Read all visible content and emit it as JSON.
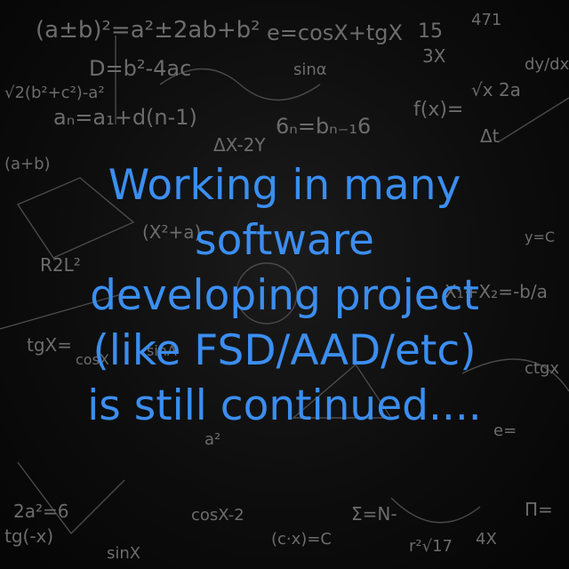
{
  "headline": {
    "lines": [
      "Working in many",
      "software",
      "developing project",
      "(like FSD/AAD/etc)",
      "is still continued...."
    ],
    "color": "#3b8ef0"
  },
  "background": {
    "color": "#0d0d0d",
    "doodle_color": "#6c6c6c",
    "formulas": [
      "(a±b)²=a²±2ab+b²",
      "e=cosX+tgX",
      "15",
      "471",
      "3X",
      "D=b²-4ac",
      "sinα",
      "√2(b²+c²)-a²",
      "aₙ=a₁+d(n-1)",
      "6ₙ=bₙ₋₁6",
      "f(x)=",
      "√x 2a",
      "Δt",
      "ΔX-2Y",
      "(a+b)",
      "(X²+a)",
      "R2L²",
      "X₁+X₂=-b/a",
      "tgX=",
      "cosX",
      "sinA",
      "a²",
      "e=",
      "tg(-x)",
      "2a²=6",
      "cosX-2",
      "(c·x)=C",
      "Σ=N-",
      "r²√17",
      "4X",
      "Π=",
      "sinX",
      "dy/dx",
      "y=C",
      "ctgx"
    ]
  }
}
